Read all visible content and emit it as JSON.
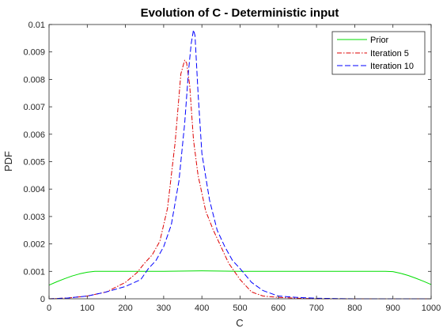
{
  "chart_data": {
    "type": "line",
    "title": "Evolution of C - Deterministic input",
    "xlabel": "C",
    "ylabel": "PDF",
    "xlim": [
      0,
      1000
    ],
    "ylim": [
      0,
      0.01
    ],
    "xticks": [
      0,
      100,
      200,
      300,
      400,
      500,
      600,
      700,
      800,
      900,
      1000
    ],
    "xtick_labels": [
      "0",
      "100",
      "200",
      "300",
      "400",
      "500",
      "600",
      "700",
      "800",
      "900",
      "1000"
    ],
    "yticks": [
      0,
      0.001,
      0.002,
      0.003,
      0.004,
      0.005,
      0.006,
      0.007,
      0.008,
      0.009,
      0.01
    ],
    "ytick_labels": [
      "0",
      "0.001",
      "0.002",
      "0.003",
      "0.004",
      "0.005",
      "0.006",
      "0.007",
      "0.008",
      "0.009",
      "0.01"
    ],
    "grid": false,
    "legend_position": "top-right",
    "series": [
      {
        "name": "Prior",
        "color": "#00dd00",
        "dash": "solid",
        "x": [
          0,
          20,
          40,
          60,
          80,
          100,
          120,
          150,
          200,
          300,
          400,
          500,
          600,
          700,
          800,
          850,
          880,
          900,
          920,
          940,
          960,
          980,
          1000
        ],
        "y": [
          0.0005,
          0.00062,
          0.00073,
          0.00083,
          0.00091,
          0.00097,
          0.001,
          0.001,
          0.001,
          0.001,
          0.00102,
          0.001,
          0.001,
          0.001,
          0.001,
          0.001,
          0.001,
          0.00099,
          0.00093,
          0.00085,
          0.00075,
          0.00064,
          0.00052
        ]
      },
      {
        "name": "Iteration 5",
        "color": "#dd0000",
        "dash": "dashdot",
        "x": [
          0,
          50,
          100,
          150,
          200,
          230,
          250,
          270,
          290,
          310,
          330,
          345,
          355,
          360,
          368,
          378,
          390,
          410,
          430,
          450,
          470,
          500,
          530,
          560,
          600,
          650,
          700,
          800,
          1000
        ],
        "y": [
          0,
          3e-05,
          0.0001,
          0.00025,
          0.0006,
          0.00095,
          0.0013,
          0.0016,
          0.0021,
          0.0033,
          0.0057,
          0.0082,
          0.0087,
          0.0086,
          0.0078,
          0.0058,
          0.0045,
          0.0032,
          0.0025,
          0.0019,
          0.0013,
          0.0007,
          0.00025,
          0.0001,
          5e-05,
          2e-05,
          0,
          0,
          0
        ]
      },
      {
        "name": "Iteration 10",
        "color": "#0000ff",
        "dash": "dashed",
        "x": [
          0,
          50,
          100,
          150,
          200,
          240,
          260,
          280,
          300,
          320,
          340,
          355,
          365,
          372,
          378,
          382,
          390,
          400,
          420,
          440,
          460,
          480,
          500,
          530,
          560,
          600,
          650,
          700,
          800,
          1000
        ],
        "y": [
          0,
          3e-05,
          0.0001,
          0.00025,
          0.00045,
          0.0007,
          0.0011,
          0.0014,
          0.0019,
          0.0027,
          0.0043,
          0.0064,
          0.0083,
          0.0093,
          0.0098,
          0.0096,
          0.0075,
          0.0053,
          0.0036,
          0.0025,
          0.0019,
          0.0014,
          0.0011,
          0.0006,
          0.0003,
          0.0001,
          5e-05,
          2e-05,
          0,
          0
        ]
      }
    ]
  }
}
